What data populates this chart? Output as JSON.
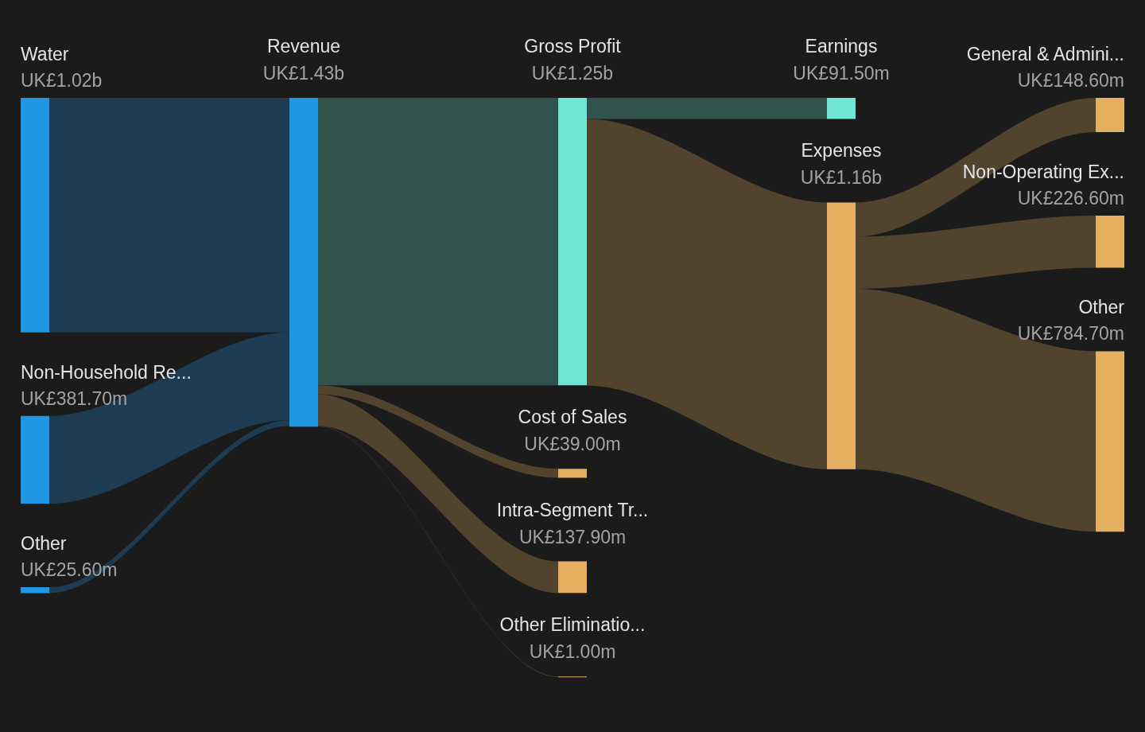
{
  "chart_data": {
    "type": "other",
    "categories": [
      "Water",
      "Non-Household Re...",
      "Other",
      "Revenue",
      "Gross Profit",
      "Cost of Sales",
      "Intra-Segment Tr...",
      "Other Eliminatio...",
      "Earnings",
      "Expenses",
      "General & Admini...",
      "Non-Operating Ex...",
      "Other"
    ],
    "colors": [
      "#2196e3",
      "#2196e3",
      "#2196e3",
      "#2196e3",
      "#6ee6d3",
      "#e6b062",
      "#e6b062",
      "#e6b062",
      "#6ee6d3",
      "#e6b062",
      "#e6b062",
      "#e6b062",
      "#e6b062"
    ],
    "series": [
      {
        "values": [
          1020000000,
          381700000,
          25600000,
          null,
          null,
          null,
          null,
          null,
          null,
          null,
          null,
          null,
          null
        ],
        "value_labels": [
          "UK£1.02b",
          "UK£381.70m",
          "UK£25.60m",
          null,
          null,
          null,
          null,
          null,
          null,
          null,
          null,
          null,
          null
        ]
      },
      {
        "values": [
          null,
          null,
          null,
          1430000000,
          null,
          null,
          null,
          null,
          null,
          null,
          null,
          null,
          null
        ],
        "value_labels": [
          null,
          null,
          null,
          "UK£1.43b",
          null,
          null,
          null,
          null,
          null,
          null,
          null,
          null,
          null
        ]
      },
      {
        "values": [
          null,
          null,
          null,
          null,
          1250000000,
          39000000,
          137900000,
          1000000,
          null,
          null,
          null,
          null,
          null
        ],
        "value_labels": [
          null,
          null,
          null,
          null,
          "UK£1.25b",
          "UK£39.00m",
          "UK£137.90m",
          "UK£1.00m",
          null,
          null,
          null,
          null,
          null
        ]
      },
      {
        "values": [
          null,
          null,
          null,
          null,
          null,
          null,
          null,
          null,
          91500000,
          1160000000,
          null,
          null,
          null
        ],
        "value_labels": [
          null,
          null,
          null,
          null,
          null,
          null,
          null,
          null,
          "UK£91.50m",
          "UK£1.16b",
          null,
          null,
          null
        ]
      },
      {
        "values": [
          null,
          null,
          null,
          null,
          null,
          null,
          null,
          null,
          null,
          null,
          148600000,
          226600000,
          784700000
        ],
        "value_labels": [
          null,
          null,
          null,
          null,
          null,
          null,
          null,
          null,
          null,
          null,
          "UK£148.60m",
          "UK£226.60m",
          "UK£784.70m"
        ]
      }
    ]
  }
}
